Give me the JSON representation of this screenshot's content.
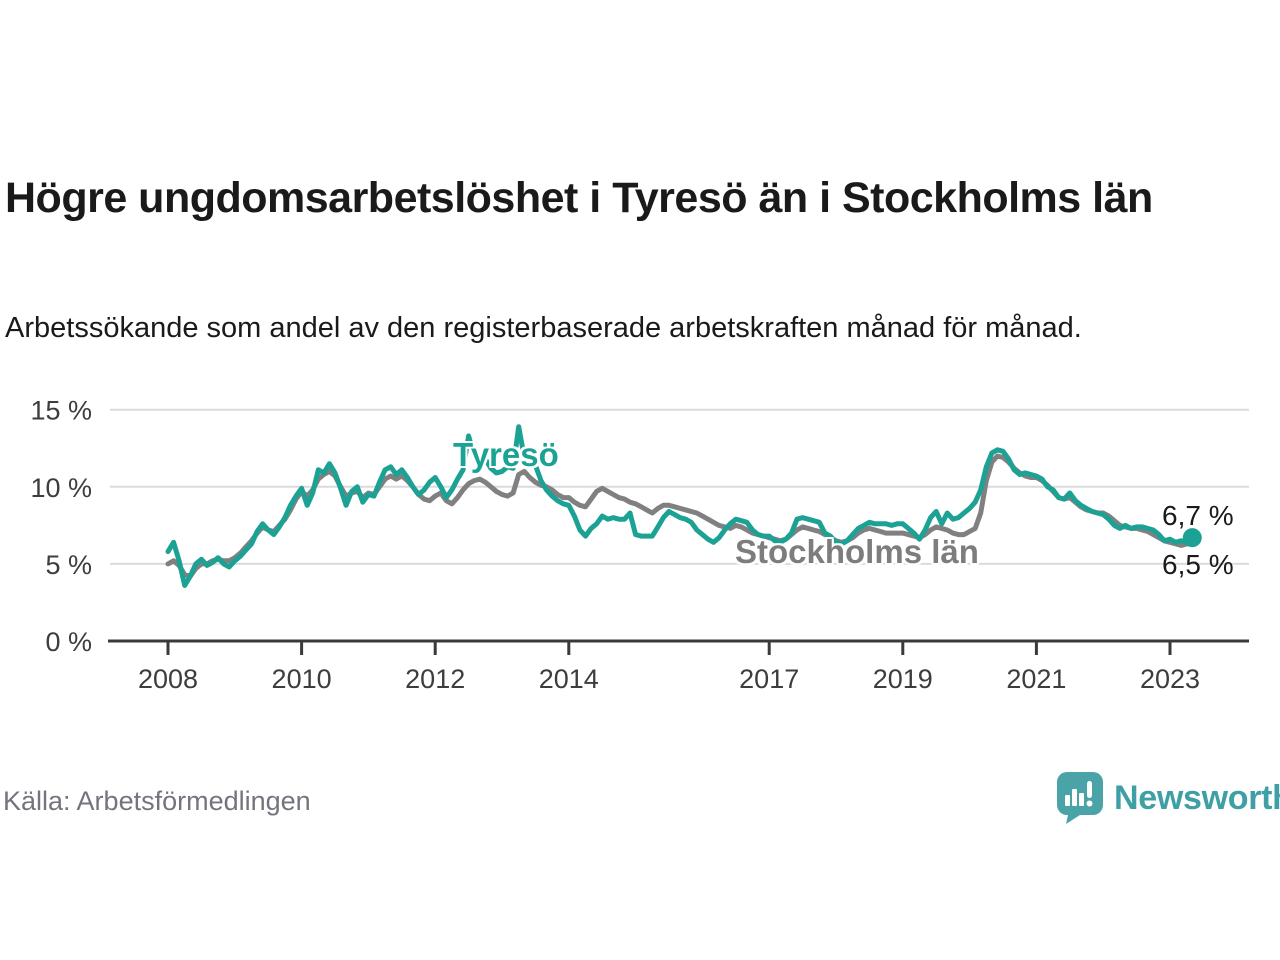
{
  "title": "Högre ungdomsarbetslöshet i Tyresö än i Stockholms län",
  "subtitle": "Arbetssökande som andel av den registerbaserade arbetskraften månad för månad.",
  "source": "Källa: Arbetsförmedlingen",
  "logo": {
    "brand": "Newsworthy",
    "icon": "newsworthy-speech-bubble-chart-icon"
  },
  "colors": {
    "tyreso": "#1CA294",
    "stockholm": "#808080",
    "grid": "#DBDBDB",
    "axis": "#3A3A3A",
    "tick_text": "#3D3D3D",
    "text": "#1A1A1A",
    "muted": "#74747E",
    "brand": "#3EA0A5"
  },
  "chart_data": {
    "type": "line",
    "title": "Högre ungdomsarbetslöshet i Tyresö än i Stockholms län",
    "subtitle": "Arbetssökande som andel av den registerbaserade arbetskraften månad för månad.",
    "unit": "%",
    "x_start": "2008-01",
    "x_step_months": 1,
    "xlim": [
      2008,
      2023.42
    ],
    "ylim": [
      0,
      15
    ],
    "grid": "horizontal",
    "legend_position": "inline-line-labels",
    "yticks": [
      {
        "value": 0,
        "label": "0 %"
      },
      {
        "value": 5,
        "label": "5 %"
      },
      {
        "value": 10,
        "label": "10 %"
      },
      {
        "value": 15,
        "label": "15 %"
      }
    ],
    "xticks": [
      {
        "year": 2008,
        "label": "2008"
      },
      {
        "year": 2010,
        "label": "2010"
      },
      {
        "year": 2012,
        "label": "2012"
      },
      {
        "year": 2014,
        "label": "2014"
      },
      {
        "year": 2017,
        "label": "2017"
      },
      {
        "year": 2019,
        "label": "2019"
      },
      {
        "year": 2021,
        "label": "2021"
      },
      {
        "year": 2023,
        "label": "2023"
      }
    ],
    "end_labels": {
      "tyreso": "6,7 %",
      "stockholm": "6,5 %"
    },
    "series": [
      {
        "name": "Tyresö",
        "color": "#1CA294",
        "end_value_label": "6,7 %",
        "values": [
          5.8,
          6.4,
          5.2,
          3.6,
          4.2,
          5.0,
          5.3,
          4.9,
          5.1,
          5.4,
          5.0,
          4.8,
          5.2,
          5.5,
          5.9,
          6.3,
          7.1,
          7.6,
          7.2,
          6.9,
          7.4,
          8.0,
          8.8,
          9.4,
          9.9,
          8.8,
          9.6,
          11.1,
          10.9,
          11.5,
          10.9,
          9.9,
          8.8,
          9.7,
          10.0,
          9.0,
          9.5,
          9.4,
          10.3,
          11.1,
          11.3,
          10.8,
          11.1,
          10.6,
          10.0,
          9.5,
          9.8,
          10.3,
          10.6,
          10.0,
          9.3,
          9.8,
          10.5,
          11.1,
          13.3,
          12.0,
          11.5,
          11.8,
          11.2,
          10.9,
          11.0,
          11.3,
          11.2,
          13.9,
          11.9,
          11.6,
          11.4,
          10.4,
          9.8,
          9.4,
          9.1,
          8.9,
          8.8,
          8.1,
          7.2,
          6.8,
          7.3,
          7.6,
          8.1,
          7.9,
          8.0,
          7.9,
          7.9,
          8.3,
          6.9,
          6.8,
          6.8,
          6.8,
          7.4,
          8.0,
          8.4,
          8.2,
          8.0,
          7.9,
          7.7,
          7.2,
          6.9,
          6.6,
          6.4,
          6.7,
          7.2,
          7.6,
          7.9,
          7.8,
          7.7,
          7.2,
          6.9,
          6.8,
          6.8,
          6.5,
          6.4,
          6.6,
          7.0,
          7.9,
          8.0,
          7.9,
          7.8,
          7.7,
          7.0,
          6.8,
          6.4,
          6.3,
          6.5,
          6.9,
          7.3,
          7.5,
          7.7,
          7.6,
          7.6,
          7.6,
          7.5,
          7.6,
          7.6,
          7.3,
          7.0,
          6.6,
          7.2,
          8.0,
          8.4,
          7.6,
          8.3,
          7.9,
          8.0,
          8.3,
          8.6,
          9.0,
          9.8,
          11.3,
          12.2,
          12.4,
          12.3,
          11.8,
          11.1,
          10.8,
          10.9,
          10.8,
          10.7,
          10.5,
          10.0,
          9.8,
          9.3,
          9.2,
          9.6,
          9.1,
          8.8,
          8.6,
          8.4,
          8.3,
          8.2,
          7.9,
          7.5,
          7.3,
          7.5,
          7.3,
          7.4,
          7.4,
          7.3,
          7.2,
          6.9,
          6.5,
          6.6,
          6.4,
          6.5,
          6.4,
          6.7
        ]
      },
      {
        "name": "Stockholms län",
        "color": "#808080",
        "end_value_label": "6,5 %",
        "values": [
          5.0,
          5.2,
          4.9,
          4.3,
          4.2,
          4.7,
          5.0,
          5.0,
          5.2,
          5.3,
          5.2,
          5.2,
          5.4,
          5.7,
          6.1,
          6.5,
          7.0,
          7.4,
          7.2,
          7.1,
          7.5,
          7.9,
          8.5,
          9.2,
          9.7,
          9.4,
          9.8,
          10.5,
          10.8,
          11.0,
          10.7,
          10.0,
          9.4,
          9.6,
          9.7,
          9.3,
          9.6,
          9.5,
          10.0,
          10.5,
          10.7,
          10.5,
          10.7,
          10.4,
          10.0,
          9.5,
          9.2,
          9.1,
          9.4,
          9.6,
          9.1,
          8.9,
          9.3,
          9.8,
          10.2,
          10.4,
          10.5,
          10.3,
          10.0,
          9.7,
          9.5,
          9.4,
          9.6,
          10.8,
          11.0,
          10.6,
          10.3,
          10.1,
          10.0,
          9.8,
          9.5,
          9.3,
          9.3,
          9.0,
          8.8,
          8.7,
          9.2,
          9.7,
          9.9,
          9.7,
          9.5,
          9.3,
          9.2,
          9.0,
          8.9,
          8.7,
          8.5,
          8.3,
          8.6,
          8.8,
          8.8,
          8.7,
          8.6,
          8.5,
          8.4,
          8.3,
          8.1,
          7.9,
          7.7,
          7.5,
          7.4,
          7.3,
          7.5,
          7.4,
          7.2,
          7.0,
          6.9,
          6.8,
          6.7,
          6.6,
          6.5,
          6.6,
          6.9,
          7.2,
          7.4,
          7.3,
          7.2,
          7.1,
          6.9,
          6.7,
          6.5,
          6.4,
          6.5,
          6.7,
          7.0,
          7.2,
          7.3,
          7.2,
          7.1,
          7.0,
          7.0,
          7.0,
          7.0,
          6.9,
          6.8,
          6.7,
          6.9,
          7.2,
          7.4,
          7.3,
          7.2,
          7.0,
          6.9,
          6.9,
          7.1,
          7.3,
          8.3,
          10.4,
          11.6,
          12.0,
          11.9,
          11.6,
          11.2,
          10.9,
          10.7,
          10.6,
          10.6,
          10.4,
          10.1,
          9.7,
          9.3,
          9.2,
          9.3,
          9.0,
          8.7,
          8.5,
          8.4,
          8.3,
          8.3,
          8.1,
          7.8,
          7.5,
          7.4,
          7.3,
          7.3,
          7.2,
          7.1,
          6.9,
          6.7,
          6.5,
          6.4,
          6.3,
          6.2,
          6.3,
          6.5
        ]
      }
    ]
  }
}
